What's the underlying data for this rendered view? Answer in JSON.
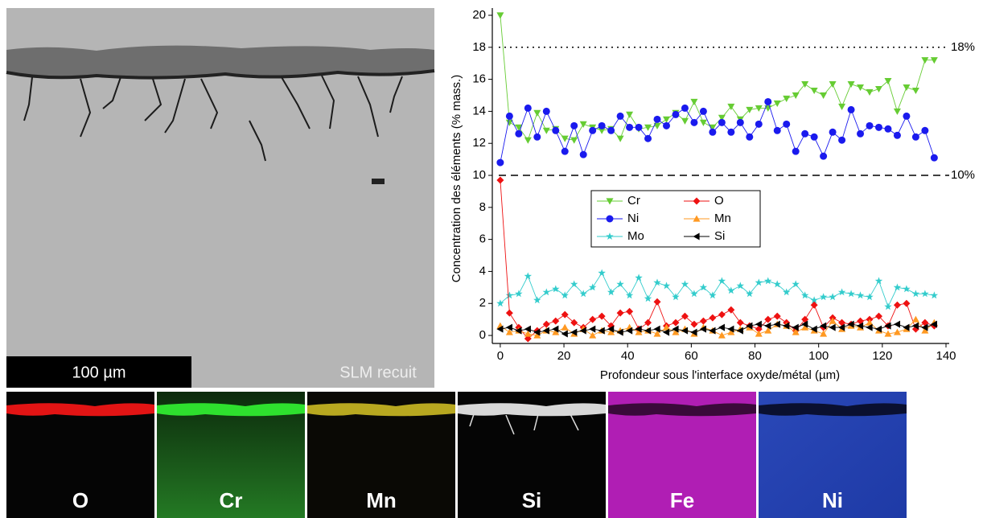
{
  "chart_data": {
    "type": "line",
    "x_label": "Profondeur sous l'interface oxyde/métal (µm)",
    "y_label": "Concentration des éléments (% mass.)",
    "x": [
      0,
      2.9,
      5.8,
      8.7,
      11.6,
      14.5,
      17.4,
      20.3,
      23.2,
      26.1,
      29,
      31.9,
      34.8,
      37.7,
      40.6,
      43.5,
      46.4,
      49.3,
      52.2,
      55.1,
      58,
      60.9,
      63.8,
      66.7,
      69.6,
      72.5,
      75.4,
      78.3,
      81.2,
      84.1,
      87,
      89.9,
      92.8,
      95.7,
      98.6,
      101.5,
      104.4,
      107.3,
      110.2,
      113.1,
      116,
      118.9,
      121.8,
      124.7,
      127.6,
      130.5,
      133.4,
      136.3
    ],
    "series": [
      {
        "name": "Cr",
        "color": "#66cc33",
        "marker": "triangle-down",
        "values": [
          20.0,
          13.3,
          13.0,
          12.2,
          13.9,
          12.8,
          12.9,
          12.3,
          12.2,
          13.2,
          13.0,
          12.8,
          12.9,
          12.3,
          13.8,
          12.9,
          13.0,
          13.1,
          13.5,
          13.9,
          13.4,
          14.6,
          13.3,
          13.0,
          13.6,
          14.3,
          13.5,
          14.1,
          14.2,
          14.2,
          14.5,
          14.8,
          15.0,
          15.7,
          15.3,
          15.0,
          15.7,
          14.3,
          15.7,
          15.5,
          15.2,
          15.4,
          15.9,
          14.0,
          15.5,
          15.3,
          17.2,
          17.2
        ]
      },
      {
        "name": "Ni",
        "color": "#1a1aee",
        "marker": "circle",
        "values": [
          10.8,
          13.7,
          12.6,
          14.2,
          12.4,
          14.0,
          12.8,
          11.5,
          13.1,
          11.3,
          12.8,
          13.1,
          12.8,
          13.7,
          13.0,
          13.0,
          12.3,
          13.5,
          13.1,
          13.8,
          14.2,
          13.3,
          14.0,
          12.7,
          13.3,
          12.7,
          13.3,
          12.4,
          13.2,
          14.6,
          12.8,
          13.2,
          11.5,
          12.6,
          12.4,
          11.2,
          12.7,
          12.2,
          14.1,
          12.6,
          13.1,
          13.0,
          12.9,
          12.5,
          13.7,
          12.4,
          12.8,
          11.1
        ]
      },
      {
        "name": "Mo",
        "color": "#33cccc",
        "marker": "star",
        "values": [
          2.0,
          2.5,
          2.6,
          3.7,
          2.2,
          2.7,
          2.9,
          2.5,
          3.2,
          2.6,
          3.0,
          3.9,
          2.7,
          3.2,
          2.5,
          3.6,
          2.3,
          3.3,
          3.1,
          2.4,
          3.2,
          2.6,
          3.0,
          2.5,
          3.4,
          2.8,
          3.1,
          2.6,
          3.3,
          3.4,
          3.2,
          2.7,
          3.2,
          2.5,
          2.2,
          2.4,
          2.4,
          2.7,
          2.6,
          2.5,
          2.4,
          3.4,
          1.8,
          3.0,
          2.9,
          2.6,
          2.6,
          2.5
        ]
      },
      {
        "name": "O",
        "color": "#ee1111",
        "marker": "diamond",
        "values": [
          9.7,
          1.4,
          0.5,
          -0.2,
          0.3,
          0.7,
          0.9,
          1.3,
          0.8,
          0.5,
          1.0,
          1.2,
          0.6,
          1.4,
          1.5,
          0.4,
          0.8,
          2.1,
          0.6,
          0.8,
          1.2,
          0.7,
          0.9,
          1.1,
          1.3,
          1.6,
          0.8,
          0.6,
          0.4,
          1.0,
          1.2,
          0.8,
          0.3,
          1.0,
          1.9,
          0.5,
          1.1,
          0.8,
          0.7,
          0.9,
          1.0,
          1.2,
          0.6,
          1.9,
          2.0,
          0.4,
          0.8,
          0.6
        ]
      },
      {
        "name": "Mn",
        "color": "#ff9922",
        "marker": "triangle-up",
        "values": [
          0.6,
          0.2,
          0.3,
          0.1,
          0.0,
          0.3,
          0.2,
          0.5,
          0.1,
          0.4,
          0.0,
          0.3,
          0.2,
          0.3,
          0.5,
          0.2,
          0.3,
          0.1,
          0.5,
          0.2,
          0.4,
          0.1,
          0.5,
          0.3,
          0.0,
          0.2,
          0.4,
          0.5,
          0.1,
          0.3,
          0.7,
          0.6,
          0.2,
          0.5,
          0.3,
          0.1,
          0.9,
          0.4,
          0.6,
          0.5,
          0.8,
          0.3,
          0.1,
          0.2,
          0.4,
          1.0,
          0.3,
          0.8
        ]
      },
      {
        "name": "Si",
        "color": "#000000",
        "marker": "triangle-left",
        "values": [
          0.4,
          0.5,
          0.3,
          0.4,
          0.2,
          0.3,
          0.4,
          0.1,
          0.2,
          0.3,
          0.4,
          0.3,
          0.4,
          0.2,
          0.3,
          0.4,
          0.3,
          0.4,
          0.2,
          0.4,
          0.3,
          0.2,
          0.4,
          0.3,
          0.5,
          0.4,
          0.3,
          0.6,
          0.7,
          0.6,
          0.7,
          0.6,
          0.5,
          0.7,
          0.4,
          0.6,
          0.5,
          0.5,
          0.7,
          0.6,
          0.5,
          0.4,
          0.6,
          0.7,
          0.5,
          0.6,
          0.5,
          0.7
        ]
      }
    ],
    "ref_lines": [
      {
        "value": 18,
        "label": "18%",
        "style": "dotted"
      },
      {
        "value": 10,
        "label": "10%",
        "style": "dashed"
      }
    ],
    "xlim": [
      -2.5,
      140
    ],
    "xticks": [
      0,
      20,
      40,
      60,
      80,
      100,
      120,
      140
    ],
    "ylim": [
      -0.5,
      20
    ],
    "yticks": [
      0,
      2,
      4,
      6,
      8,
      10,
      12,
      14,
      16,
      18,
      20
    ]
  },
  "image": {
    "scale_bar": "100 µm",
    "label": "SLM recuit"
  },
  "maps": [
    "O",
    "Cr",
    "Mn",
    "Si",
    "Fe",
    "Ni"
  ]
}
